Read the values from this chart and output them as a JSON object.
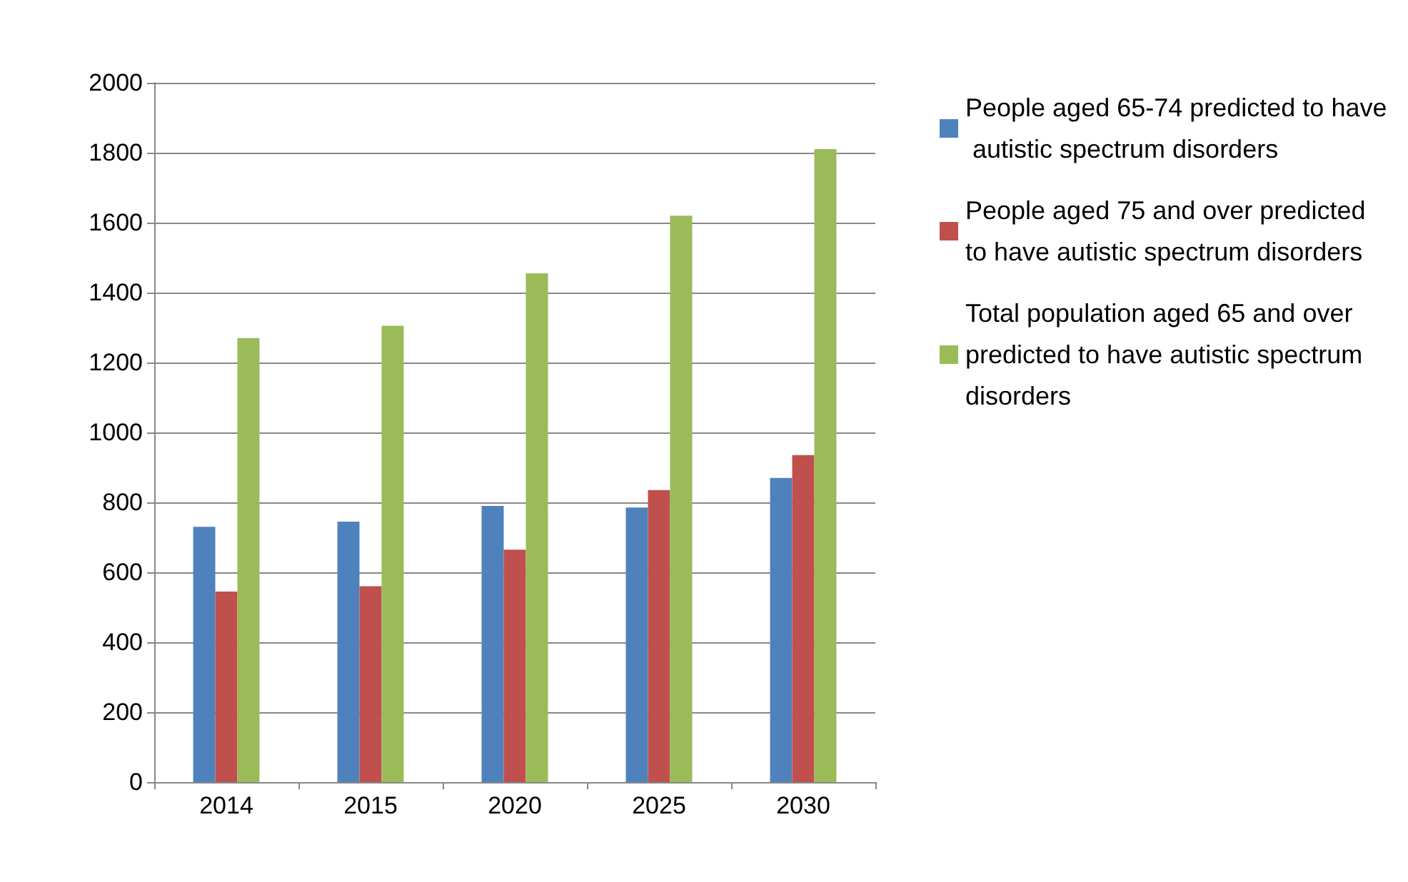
{
  "chart_data": {
    "type": "bar",
    "categories": [
      "2014",
      "2015",
      "2020",
      "2025",
      "2030"
    ],
    "series": [
      {
        "name": "People aged 65-74 predicted to have autistic spectrum disorders",
        "color": "#4f81bd",
        "values": [
          730,
          745,
          790,
          785,
          870
        ]
      },
      {
        "name": "People aged 75 and over predicted to have autistic spectrum disorders",
        "color": "#c0504d",
        "values": [
          545,
          560,
          665,
          835,
          935
        ]
      },
      {
        "name": "Total population aged 65 and over predicted to have autistic spectrum disorders",
        "color": "#9bbb59",
        "values": [
          1270,
          1305,
          1455,
          1620,
          1810
        ]
      }
    ],
    "ylim": [
      0,
      2000
    ],
    "yticks": [
      0,
      200,
      400,
      600,
      800,
      1000,
      1200,
      1400,
      1600,
      1800,
      2000
    ],
    "grid": "y",
    "legend": "right"
  }
}
